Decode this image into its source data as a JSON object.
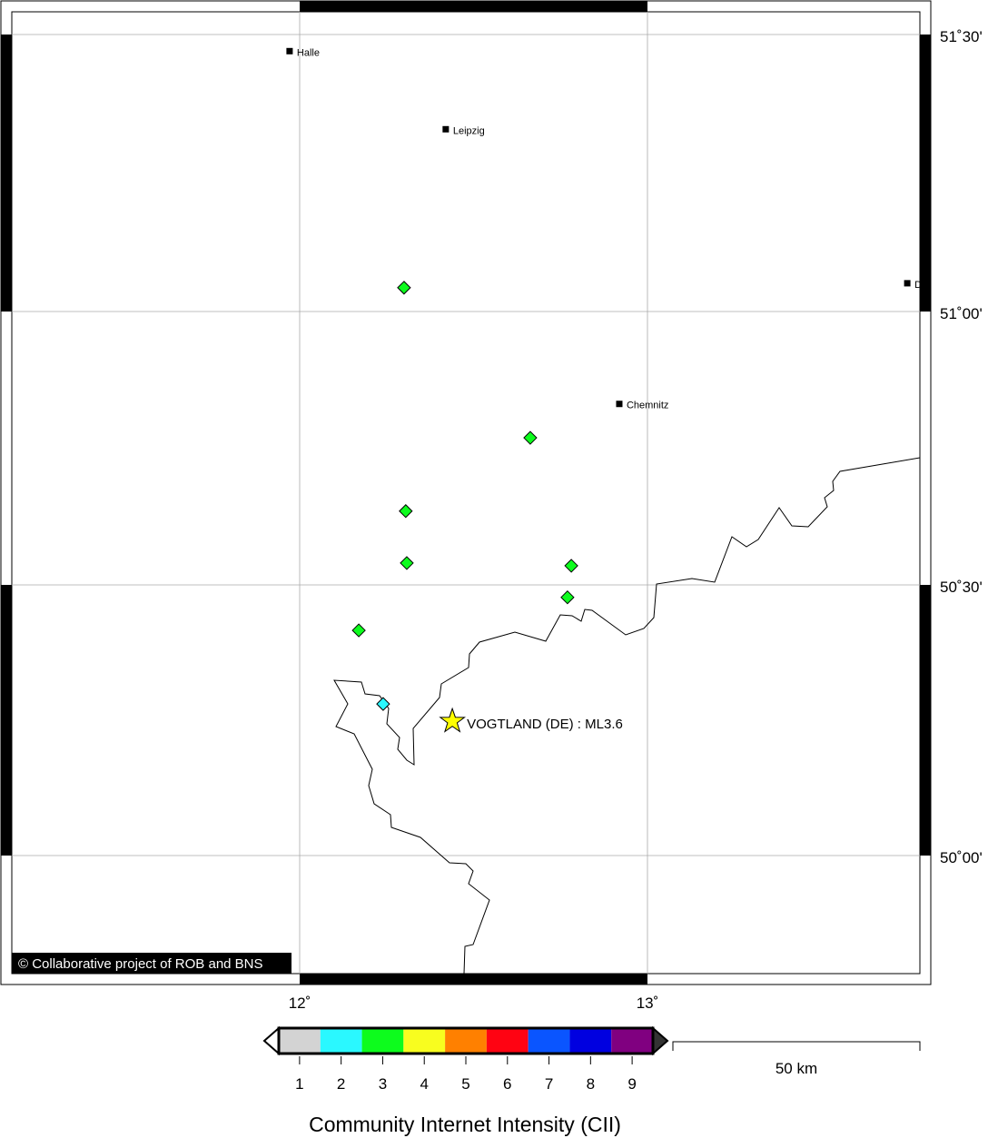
{
  "map": {
    "lon_ticks": [
      {
        "value": 12,
        "label": "12˚"
      },
      {
        "value": 13,
        "label": "13˚"
      }
    ],
    "lat_ticks": [
      {
        "value": 51.5,
        "label": "51˚30'"
      },
      {
        "value": 51.0,
        "label": "51˚00'"
      },
      {
        "value": 50.5,
        "label": "50˚30'"
      },
      {
        "value": 50.0,
        "label": "50˚00'"
      }
    ],
    "cities": [
      {
        "name": "Halle",
        "lon": 11.971,
        "lat": 51.47
      },
      {
        "name": "Leipzig",
        "lon": 12.42,
        "lat": 51.329
      },
      {
        "name": "Chemnitz",
        "lon": 12.919,
        "lat": 50.831
      },
      {
        "name": "Dresden",
        "lon": 13.747,
        "lat": 51.051
      }
    ],
    "epicenter": {
      "label": "VOGTLAND (DE) : ML3.6",
      "lon": 12.439,
      "lat": 50.248,
      "color": "#ffff00"
    },
    "reports": [
      {
        "lon": 12.3,
        "lat": 51.043,
        "cii": 3
      },
      {
        "lon": 12.663,
        "lat": 50.769,
        "cii": 3
      },
      {
        "lon": 12.305,
        "lat": 50.635,
        "cii": 3
      },
      {
        "lon": 12.308,
        "lat": 50.54,
        "cii": 3
      },
      {
        "lon": 12.781,
        "lat": 50.535,
        "cii": 3
      },
      {
        "lon": 12.77,
        "lat": 50.477,
        "cii": 3
      },
      {
        "lon": 12.17,
        "lat": 50.416,
        "cii": 3
      },
      {
        "lon": 12.24,
        "lat": 50.28,
        "cii": 2
      }
    ],
    "copyright": "© Collaborative project of ROB and BNS"
  },
  "legend": {
    "title": "Community Internet Intensity (CII)",
    "classes": [
      {
        "value": "1",
        "color": "#d3d3d3"
      },
      {
        "value": "2",
        "color": "#2af8ff"
      },
      {
        "value": "3",
        "color": "#0dfc1d"
      },
      {
        "value": "4",
        "color": "#f8fd1f"
      },
      {
        "value": "5",
        "color": "#ff8000"
      },
      {
        "value": "6",
        "color": "#ff0312"
      },
      {
        "value": "7",
        "color": "#0a55ff"
      },
      {
        "value": "8",
        "color": "#0000e0"
      },
      {
        "value": "9",
        "color": "#800080"
      }
    ]
  },
  "scale_bar": {
    "label": "50 km"
  }
}
